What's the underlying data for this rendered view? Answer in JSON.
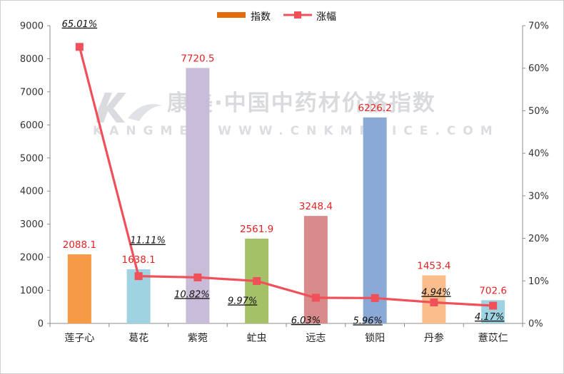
{
  "chart_data": {
    "type": "bar",
    "categories": [
      "莲子心",
      "葛花",
      "紫菀",
      "虻虫",
      "远志",
      "锁阳",
      "丹参",
      "薏苡仁"
    ],
    "series": [
      {
        "name": "指数",
        "type": "bar",
        "axis": "left",
        "values": [
          2088.1,
          1638.1,
          7720.5,
          2561.9,
          3248.4,
          6226.2,
          1453.4,
          702.6
        ],
        "labels": [
          "2088.1",
          "1638.1",
          "7720.5",
          "2561.9",
          "3248.4",
          "6226.2",
          "1453.4",
          "702.6"
        ],
        "colors": [
          "#f79a46",
          "#9fd3e2",
          "#c8bcd9",
          "#a4c168",
          "#d98a8a",
          "#8aa9d5",
          "#fabd8b",
          "#9fd3e2"
        ]
      },
      {
        "name": "涨幅",
        "type": "line",
        "axis": "right",
        "values": [
          65.01,
          11.11,
          10.82,
          9.97,
          6.03,
          5.96,
          4.94,
          4.17
        ],
        "labels": [
          "65.01%",
          "11.11%",
          "10.82%",
          "9.97%",
          "6.03%",
          "5.96%",
          "4.94%",
          "4.17%"
        ],
        "color": "#f0505a"
      }
    ],
    "y_left": {
      "min": 0,
      "max": 9000,
      "step": 1000,
      "ticks": [
        "0",
        "1000",
        "2000",
        "3000",
        "4000",
        "5000",
        "6000",
        "7000",
        "8000",
        "9000"
      ]
    },
    "y_right": {
      "min": 0,
      "max": 70,
      "step": 10,
      "ticks": [
        "0%",
        "10%",
        "20%",
        "30%",
        "40%",
        "50%",
        "60%",
        "70%"
      ]
    },
    "grid": false,
    "legend": "top-center",
    "legend_color_bar": "#e46c0a",
    "legend_color_line": "#f0505a"
  },
  "watermark": {
    "main": "康美·中国中药材价格指数",
    "sub": "KANGMEI  WWW.CNKMPRICE.COM",
    "logo_text": "K"
  }
}
